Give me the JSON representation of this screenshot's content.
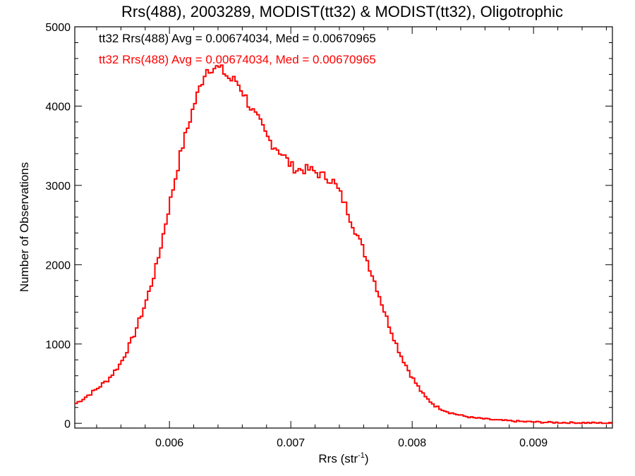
{
  "chart_data": {
    "type": "line",
    "title": "Rrs(488), 2003289, MODIST(tt32) & MODIST(tt32), Oligotrophic",
    "xlabel": "Rrs (str",
    "xlabel_sup": "-1",
    "xlabel_close": ")",
    "ylabel": "Number of Observations",
    "xlim": [
      0.00522,
      0.00965
    ],
    "ylim": [
      -60,
      5000
    ],
    "xticks": [
      0.006,
      0.007,
      0.008,
      0.009
    ],
    "xtick_labels": [
      "0.006",
      "0.007",
      "0.008",
      "0.009"
    ],
    "yticks": [
      0,
      1000,
      2000,
      3000,
      4000,
      5000
    ],
    "ytick_labels": [
      "0",
      "1000",
      "2000",
      "3000",
      "4000",
      "5000"
    ],
    "grid": false,
    "step": true,
    "annotations": [
      {
        "text": "tt32 Rrs(488) Avg = 0.00674034, Med = 0.00670965",
        "color": "#000000"
      },
      {
        "text": "tt32 Rrs(488) Avg = 0.00674034, Med = 0.00670965",
        "color": "#ff0000"
      }
    ],
    "series": [
      {
        "color": "#ff0000",
        "x": [
          0.00522,
          0.0053,
          0.0054,
          0.0055,
          0.0056,
          0.0057,
          0.0058,
          0.00585,
          0.0059,
          0.006,
          0.0061,
          0.0062,
          0.00625,
          0.0063,
          0.00635,
          0.0064,
          0.00645,
          0.0065,
          0.00655,
          0.0066,
          0.00665,
          0.0067,
          0.00675,
          0.0068,
          0.00685,
          0.0069,
          0.00695,
          0.007,
          0.00705,
          0.0071,
          0.00715,
          0.0072,
          0.00725,
          0.0073,
          0.00735,
          0.0074,
          0.00745,
          0.0075,
          0.0076,
          0.0077,
          0.0078,
          0.0079,
          0.008,
          0.0081,
          0.0082,
          0.0083,
          0.0084,
          0.0085,
          0.0087,
          0.0089,
          0.0091,
          0.0093,
          0.0095,
          0.00965
        ],
        "y": [
          240,
          320,
          430,
          560,
          760,
          1080,
          1500,
          1750,
          2020,
          2750,
          3450,
          4000,
          4230,
          4460,
          4490,
          4480,
          4430,
          4330,
          4320,
          4200,
          4040,
          3900,
          3780,
          3620,
          3520,
          3450,
          3360,
          3250,
          3200,
          3200,
          3200,
          3170,
          3130,
          3100,
          3050,
          2920,
          2750,
          2550,
          2180,
          1750,
          1280,
          880,
          580,
          340,
          210,
          140,
          100,
          70,
          40,
          22,
          12,
          8,
          5,
          0
        ]
      }
    ]
  }
}
